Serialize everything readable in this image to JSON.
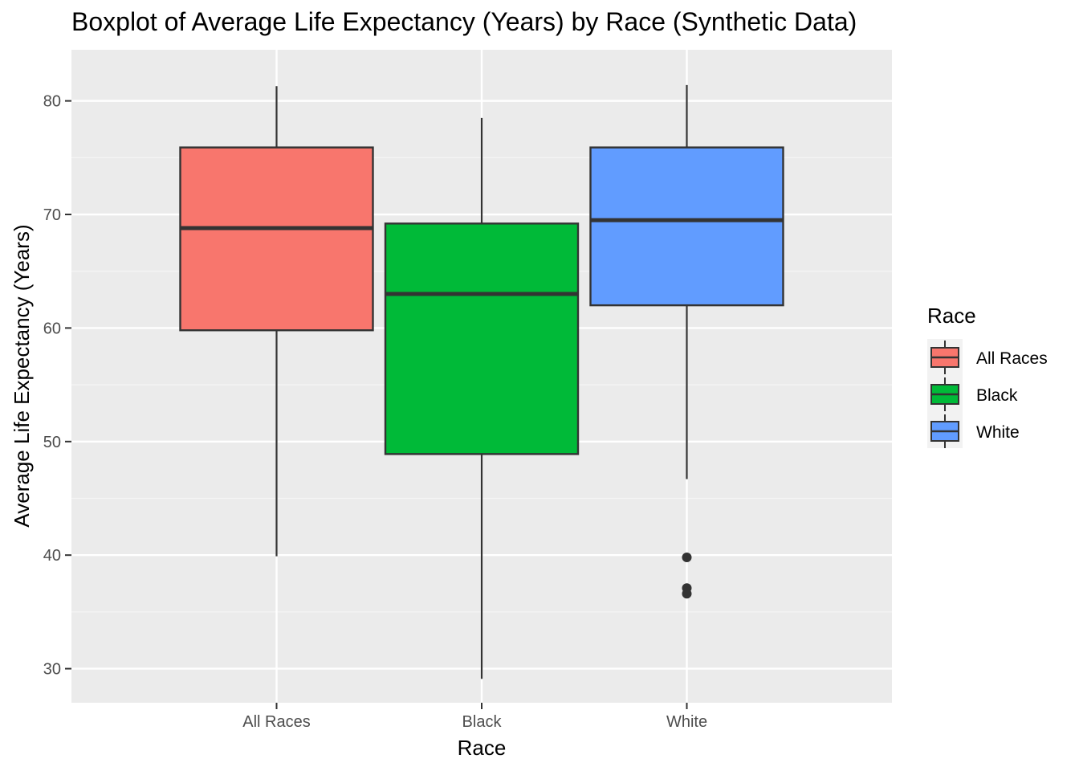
{
  "chart_data": {
    "type": "boxplot",
    "title": "Boxplot of Average Life Expectancy (Years) by Race (Synthetic Data)",
    "xlabel": "Race",
    "ylabel": "Average Life Expectancy (Years)",
    "ylim": [
      27,
      84.5
    ],
    "yticks": [
      30,
      40,
      50,
      60,
      70,
      80
    ],
    "grid": true,
    "legend": {
      "title": "Race",
      "position": "right"
    },
    "categories": [
      "All Races",
      "Black",
      "White"
    ],
    "series": [
      {
        "name": "All Races",
        "color": "#F8766D",
        "whisker_low": 39.9,
        "q1": 59.8,
        "median": 68.8,
        "q3": 75.9,
        "whisker_high": 81.3,
        "outliers": []
      },
      {
        "name": "Black",
        "color": "#00BA38",
        "whisker_low": 29.1,
        "q1": 48.9,
        "median": 63.0,
        "q3": 69.2,
        "whisker_high": 78.5,
        "outliers": []
      },
      {
        "name": "White",
        "color": "#619CFF",
        "whisker_low": 46.7,
        "q1": 62.0,
        "median": 69.5,
        "q3": 75.9,
        "whisker_high": 81.4,
        "outliers": [
          39.8,
          37.1,
          36.6
        ]
      }
    ]
  }
}
